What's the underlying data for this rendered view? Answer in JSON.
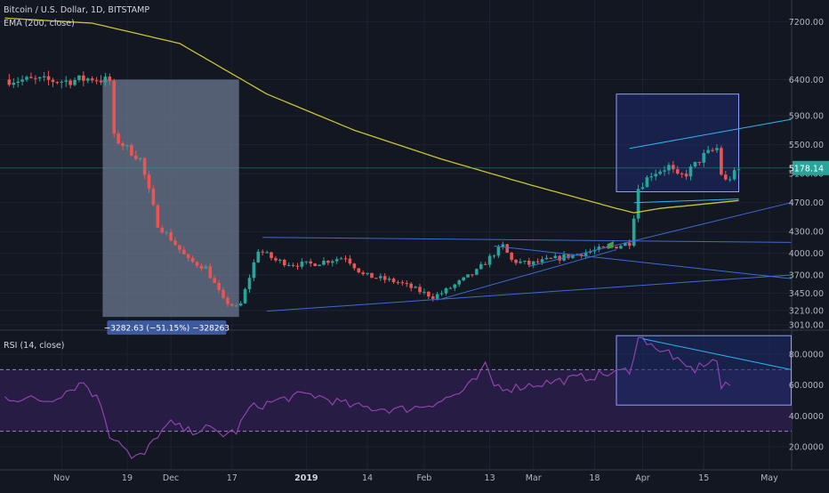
{
  "header": {
    "symbol": "Bitcoin / U.S. Dollar, 1D, BITSTAMP",
    "ema_label": "EMA (200, close)",
    "rsi_label": "RSI (14, close)"
  },
  "price_tag": "5178.14",
  "measure_label": "−3282.63 (−51.15%) −328263",
  "colors": {
    "background": "#131722",
    "grid": "#1f2331",
    "up": "#26a69a",
    "down": "#ef5350",
    "ema": "#c8c430",
    "trendline": "#3c6bd6",
    "rsi_line": "#8e44ad",
    "rsi_band": "#2a1e48",
    "channel": "#29b6f6",
    "measure_box": "#6b7890",
    "price_tag": "#26a69a"
  },
  "chart_data": [
    {
      "type": "candlestick",
      "title": "Bitcoin / U.S. Dollar, 1D, BITSTAMP",
      "x_ticks": [
        "Nov",
        "19",
        "Dec",
        "17",
        "2019",
        "14",
        "Feb",
        "13",
        "Mar",
        "18",
        "Apr",
        "15",
        "May"
      ],
      "y_ticks": [
        3010,
        3210,
        3450,
        3700,
        4000,
        4300,
        4700,
        5100,
        5500,
        5900,
        6400,
        7200
      ],
      "ylim": [
        2950,
        7500
      ],
      "price_anchors": [
        [
          0,
          6400
        ],
        [
          14,
          6380
        ],
        [
          20,
          6420
        ],
        [
          24,
          6380
        ],
        [
          25,
          5600
        ],
        [
          28,
          5450
        ],
        [
          31,
          5300
        ],
        [
          35,
          4400
        ],
        [
          38,
          4200
        ],
        [
          42,
          3900
        ],
        [
          46,
          3800
        ],
        [
          50,
          3350
        ],
        [
          53,
          3250
        ],
        [
          54,
          3300
        ],
        [
          58,
          4050
        ],
        [
          62,
          3900
        ],
        [
          66,
          3850
        ],
        [
          70,
          3850
        ],
        [
          74,
          3900
        ],
        [
          78,
          3950
        ],
        [
          82,
          3700
        ],
        [
          86,
          3650
        ],
        [
          90,
          3600
        ],
        [
          94,
          3500
        ],
        [
          98,
          3400
        ],
        [
          100,
          3450
        ],
        [
          104,
          3600
        ],
        [
          108,
          3750
        ],
        [
          112,
          4000
        ],
        [
          114,
          4100
        ],
        [
          116,
          3900
        ],
        [
          120,
          3850
        ],
        [
          124,
          3900
        ],
        [
          128,
          3950
        ],
        [
          132,
          4000
        ],
        [
          136,
          4050
        ],
        [
          140,
          4100
        ],
        [
          143,
          4150
        ],
        [
          145,
          4900
        ],
        [
          148,
          5100
        ],
        [
          152,
          5200
        ],
        [
          154,
          5050
        ],
        [
          156,
          5100
        ],
        [
          160,
          5350
        ],
        [
          163,
          5450
        ],
        [
          164,
          5100
        ],
        [
          165,
          5000
        ],
        [
          168,
          5150
        ]
      ],
      "ema_anchors": [
        [
          0,
          7250
        ],
        [
          20,
          7180
        ],
        [
          40,
          6900
        ],
        [
          60,
          6200
        ],
        [
          80,
          5700
        ],
        [
          100,
          5300
        ],
        [
          120,
          4950
        ],
        [
          140,
          4620
        ],
        [
          144,
          4560
        ],
        [
          150,
          4620
        ],
        [
          160,
          4680
        ],
        [
          168,
          4730
        ]
      ],
      "annotations": {
        "measure": {
          "from_date_index": 23,
          "to_date_index": 53,
          "high": 6400,
          "low": 3120
        },
        "triangle_lines": [
          [
            [
              59,
              4220
            ],
            [
              180,
              4150
            ]
          ],
          [
            [
              60,
              3200
            ],
            [
              180,
              3700
            ]
          ],
          [
            [
              112,
              4100
            ],
            [
              180,
              3650
            ]
          ],
          [
            [
              100,
              3370
            ],
            [
              140,
              4050
            ]
          ],
          [
            [
              120,
              3820
            ],
            [
              180,
              4700
            ]
          ]
        ],
        "rising_wedge_box": {
          "from_index": 140,
          "to_index": 168,
          "high": 6200,
          "low": 4850
        },
        "wedge_lines": [
          [
            [
              143,
              5450
            ],
            [
              180,
              5850
            ]
          ],
          [
            [
              144,
              4700
            ],
            [
              168,
              4750
            ]
          ]
        ]
      }
    },
    {
      "type": "line",
      "title": "RSI (14, close)",
      "y_ticks": [
        20,
        40,
        60,
        80
      ],
      "y_tick_labels": [
        "20.0000",
        "40.0000",
        "60.0000",
        "80.0000"
      ],
      "ylim": [
        5,
        95
      ],
      "bands": [
        30,
        70
      ],
      "rsi_anchors": [
        [
          0,
          52
        ],
        [
          10,
          50
        ],
        [
          18,
          62
        ],
        [
          22,
          48
        ],
        [
          24,
          28
        ],
        [
          27,
          22
        ],
        [
          29,
          12
        ],
        [
          32,
          15
        ],
        [
          35,
          28
        ],
        [
          38,
          35
        ],
        [
          42,
          30
        ],
        [
          46,
          32
        ],
        [
          50,
          28
        ],
        [
          53,
          30
        ],
        [
          56,
          45
        ],
        [
          60,
          48
        ],
        [
          65,
          52
        ],
        [
          70,
          54
        ],
        [
          75,
          50
        ],
        [
          80,
          46
        ],
        [
          85,
          45
        ],
        [
          90,
          44
        ],
        [
          95,
          46
        ],
        [
          100,
          50
        ],
        [
          105,
          56
        ],
        [
          108,
          64
        ],
        [
          110,
          72
        ],
        [
          112,
          60
        ],
        [
          116,
          58
        ],
        [
          120,
          60
        ],
        [
          125,
          62
        ],
        [
          130,
          64
        ],
        [
          135,
          66
        ],
        [
          140,
          68
        ],
        [
          143,
          70
        ],
        [
          145,
          90
        ],
        [
          148,
          88
        ],
        [
          150,
          80
        ],
        [
          152,
          82
        ],
        [
          155,
          72
        ],
        [
          158,
          70
        ],
        [
          160,
          74
        ],
        [
          163,
          76
        ],
        [
          164,
          58
        ],
        [
          166,
          60
        ]
      ],
      "annotations": {
        "box": {
          "from_index": 140,
          "to_index": 180,
          "high": 92,
          "low": 47
        },
        "trendline": [
          [
            146,
            90
          ],
          [
            180,
            70
          ]
        ]
      }
    }
  ]
}
